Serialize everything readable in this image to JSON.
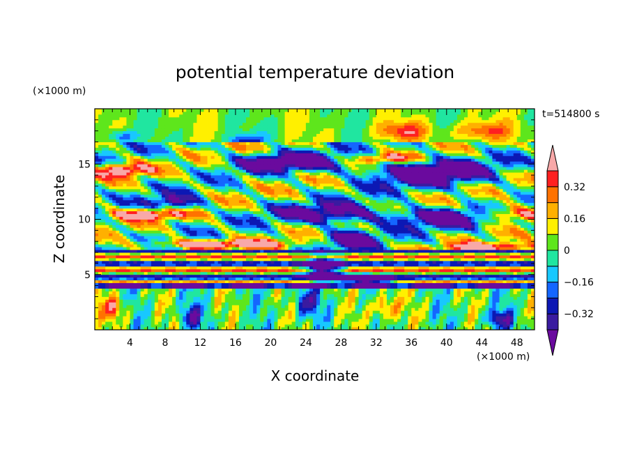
{
  "chart_data": {
    "type": "heatmap",
    "title": "potential temperature deviation",
    "xlabel": "X coordinate",
    "ylabel": "Z coordinate",
    "x_unit_label": "(×1000 m)",
    "y_unit_label": "(×1000 m)",
    "time_label": "t=514800 s",
    "xlim": [
      0,
      50
    ],
    "ylim": [
      0,
      20
    ],
    "x_ticks": [
      4,
      8,
      12,
      16,
      20,
      24,
      28,
      32,
      36,
      40,
      44,
      48
    ],
    "x_minor_step": 1,
    "y_ticks": [
      5,
      10,
      15
    ],
    "y_minor_step": 1,
    "colorbar": {
      "levels": [
        -0.4,
        -0.32,
        -0.24,
        -0.16,
        -0.08,
        0,
        0.08,
        0.16,
        0.24,
        0.32,
        0.4
      ],
      "colors": [
        "#6a0a9e",
        "#3a1ba0",
        "#0c18b4",
        "#1466ff",
        "#18c8ff",
        "#20e6a0",
        "#5ee61c",
        "#fff000",
        "#ffb000",
        "#ff7200",
        "#ff2020",
        "#f8a8a8"
      ],
      "labels": [
        {
          "value": 0.32,
          "text": "0.32"
        },
        {
          "value": 0.16,
          "text": "0.16"
        },
        {
          "value": 0,
          "text": "0"
        },
        {
          "value": -0.16,
          "text": "−0.16"
        },
        {
          "value": -0.32,
          "text": "−0.32"
        }
      ]
    },
    "field_description_bands": [
      {
        "z": [
          0,
          4
        ],
        "character": "convective plumes"
      },
      {
        "z": [
          4,
          7
        ],
        "character": "strong inversion layer"
      },
      {
        "z": [
          7,
          17
        ],
        "character": "large cold blobs and warm ribbons"
      },
      {
        "z": [
          17,
          20
        ],
        "character": "near-neutral upper layer"
      }
    ]
  }
}
